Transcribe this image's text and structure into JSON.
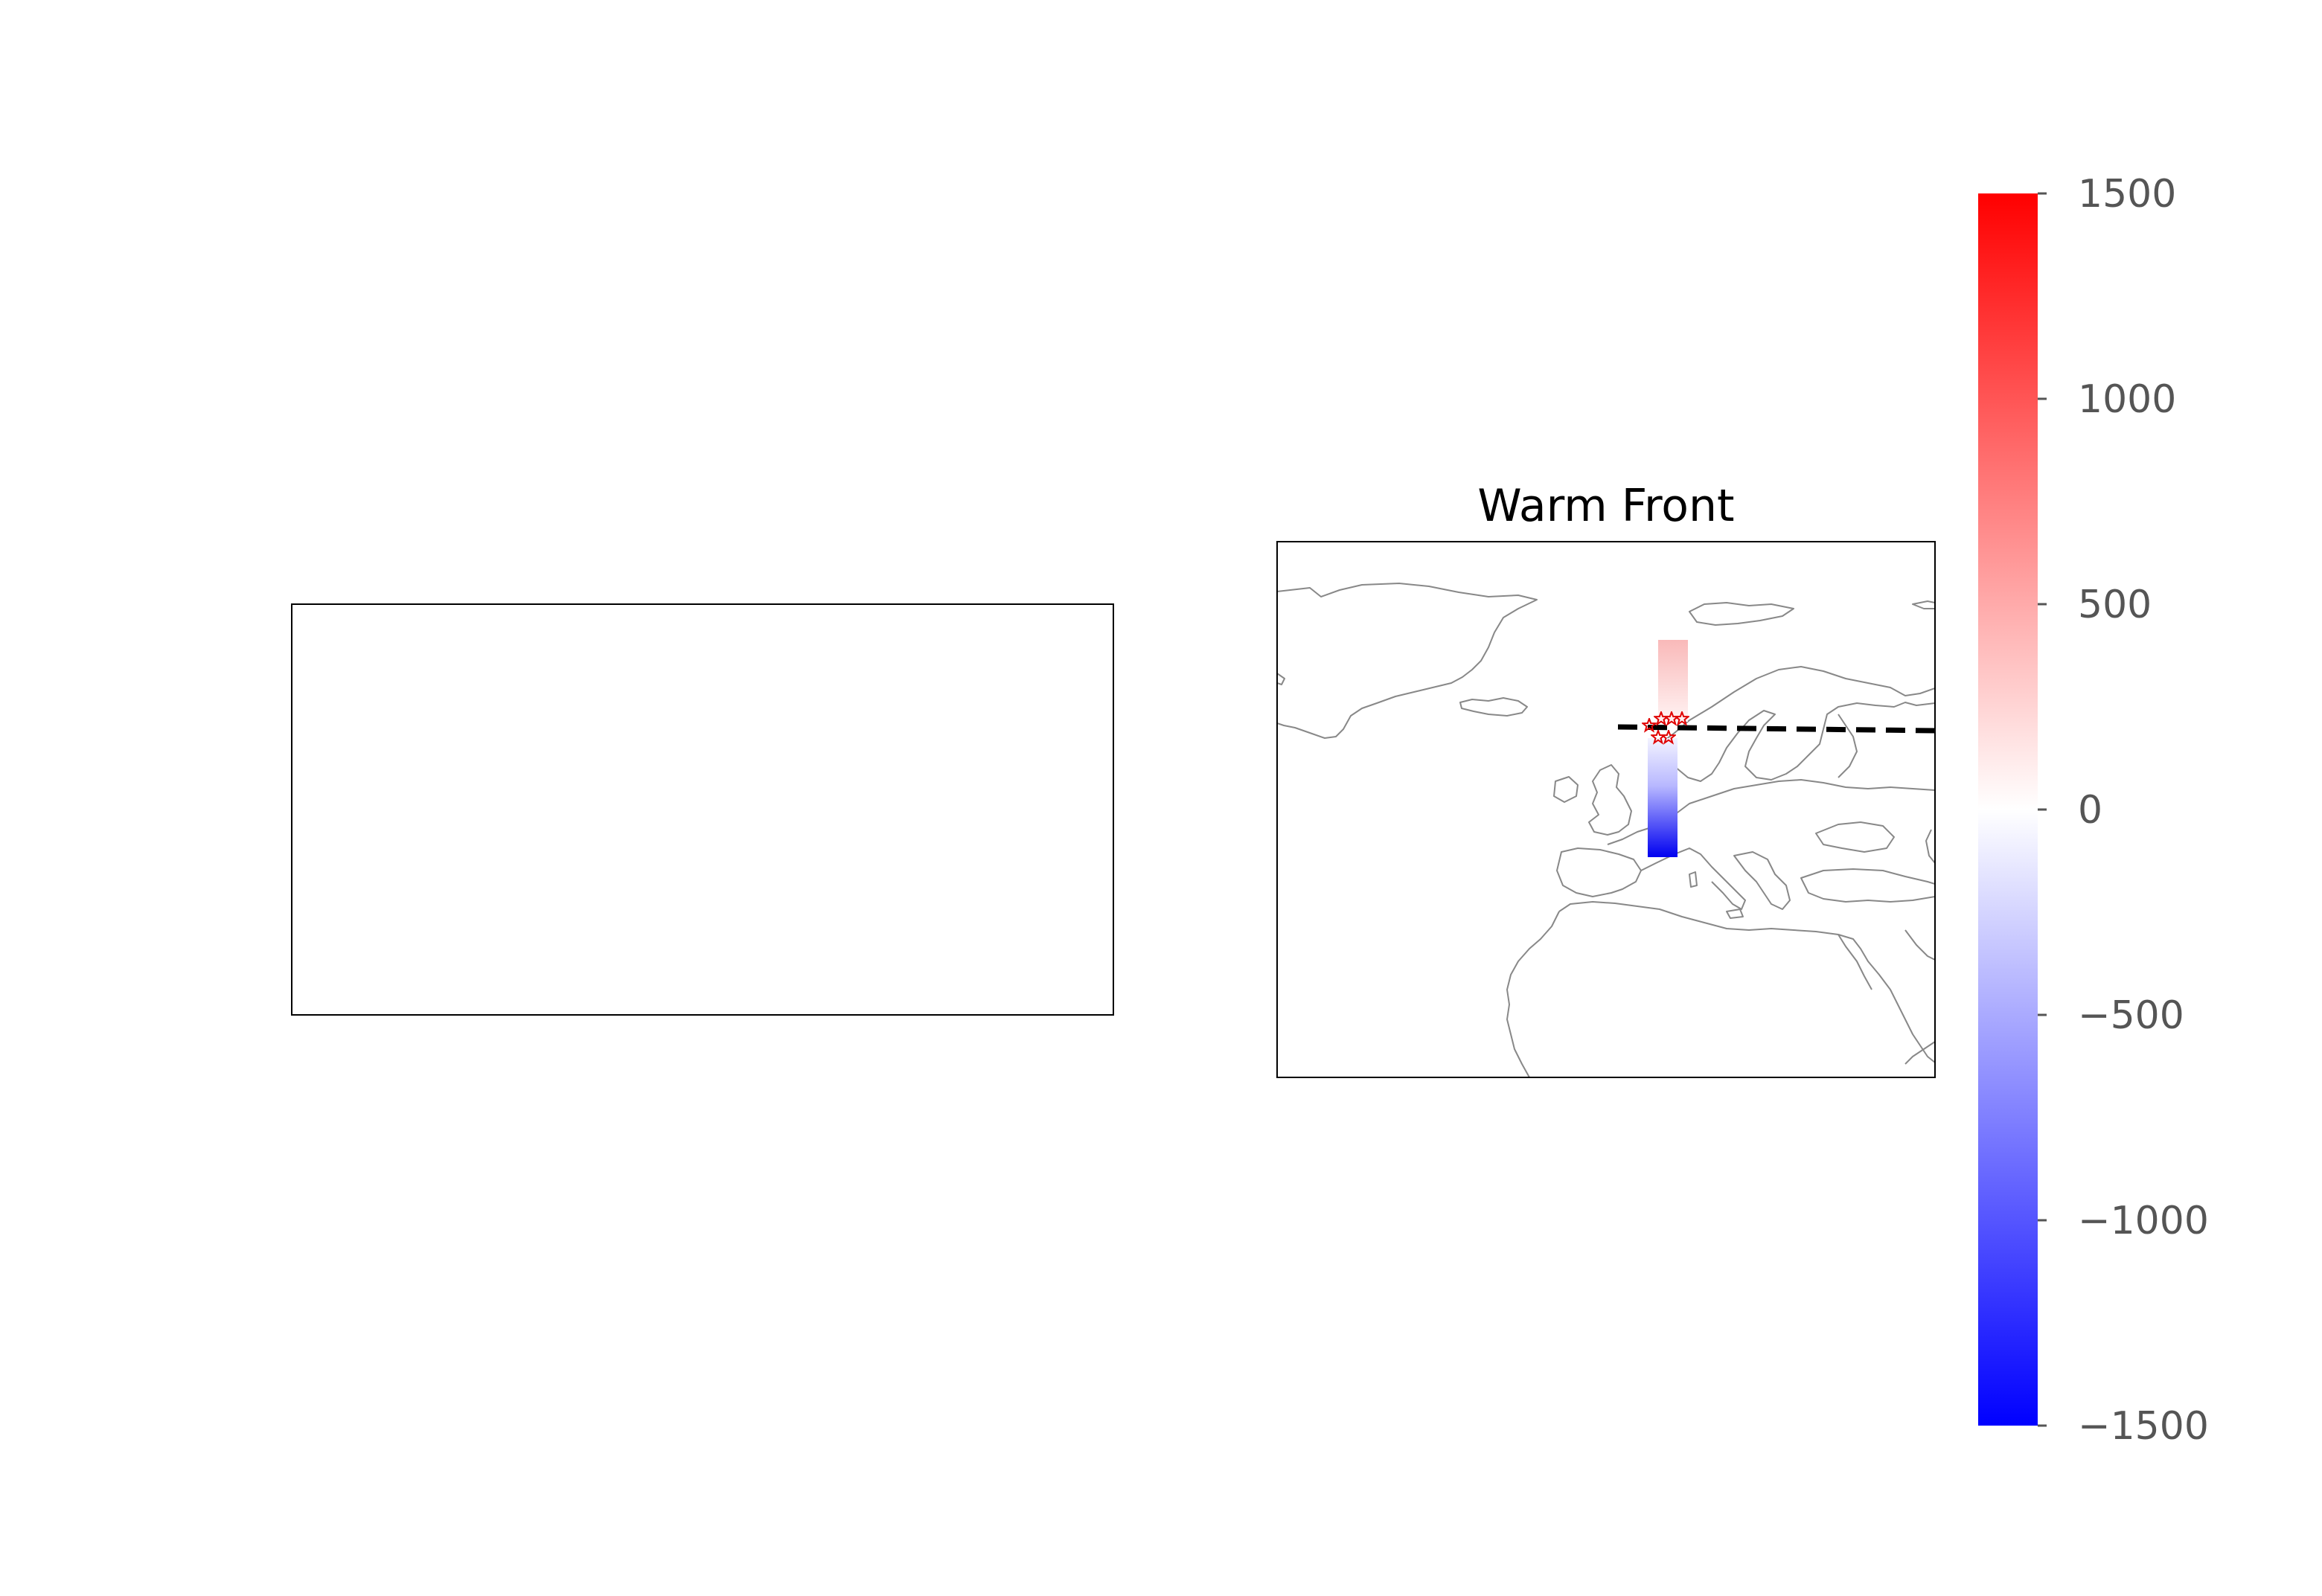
{
  "chart_data": [
    {
      "type": "heatmap",
      "title": "",
      "panel": "left-empty-map",
      "series": []
    },
    {
      "type": "heatmap",
      "title": "Warm Front",
      "map_region": "Europe / North Atlantic",
      "colormap": "bwr",
      "colorbar": {
        "ticks": [
          -1500,
          -1000,
          -500,
          0,
          500,
          1000,
          1500
        ],
        "tick_labels": [
          "−1500",
          "−1000",
          "−500",
          "0",
          "500",
          "1000",
          "1500"
        ],
        "range": [
          -1500,
          1500
        ]
      },
      "front_line": {
        "style": "dashed",
        "color": "#000000"
      },
      "columns": [
        {
          "location": "north of front",
          "value_range": [
            0,
            500
          ]
        },
        {
          "location": "south of front",
          "value_range": [
            -1500,
            0
          ]
        }
      ],
      "station_markers": {
        "marker": "star",
        "color": "#e00000",
        "count": 6
      }
    }
  ],
  "colors": {
    "positive": "#ff0000",
    "neutral": "#ffffff",
    "negative": "#0000ff",
    "coastline": "#888888",
    "tick_text": "#555555"
  }
}
